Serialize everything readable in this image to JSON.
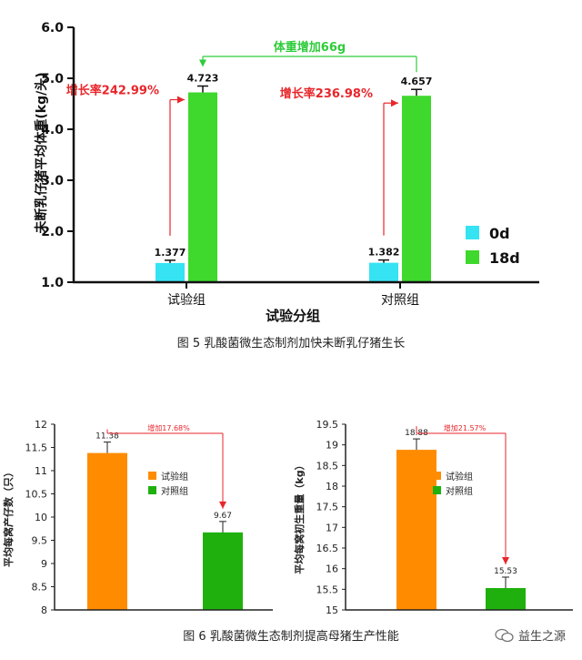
{
  "chart_data": [
    {
      "type": "bar",
      "ylabel": "未断乳仔猪平均体重(kg/头)",
      "xlabel": "试验分组",
      "categories": [
        "试验组",
        "对照组"
      ],
      "series": [
        {
          "name": "0d",
          "values": [
            1.377,
            1.382
          ],
          "labels": [
            "1.377",
            "1.382"
          ],
          "color": "#35e3f2"
        },
        {
          "name": "18d",
          "values": [
            4.723,
            4.657
          ],
          "labels": [
            "4.723",
            "4.657"
          ],
          "color": "#3fd82c"
        }
      ],
      "ylim": [
        1.0,
        6.0
      ],
      "yticks": [
        "1.0",
        "2.0",
        "3.0",
        "4.0",
        "5.0",
        "6.0"
      ],
      "legend_position": "right",
      "annotations": {
        "growth": [
          "增长率242.99%",
          "增长率236.98%"
        ],
        "diff": "体重增加66g"
      }
    },
    {
      "type": "bar",
      "ylabel": "平均每窝产仔数（只）",
      "categories": [
        "试验组",
        "对照组"
      ],
      "values": [
        11.38,
        9.67
      ],
      "labels": [
        "11.38",
        "9.67"
      ],
      "colors": [
        "#ff8c00",
        "#1fb00e"
      ],
      "ylim": [
        8,
        12
      ],
      "yticks": [
        "8",
        "8.5",
        "9",
        "9.5",
        "10",
        "10.5",
        "11",
        "11.5",
        "12"
      ],
      "legend_position": "center-right",
      "annotation": "增加17.68%"
    },
    {
      "type": "bar",
      "ylabel": "平均每窝初生重量（kg）",
      "categories": [
        "试验组",
        "对照组"
      ],
      "values": [
        18.88,
        15.53
      ],
      "labels": [
        "18.88",
        "15.53"
      ],
      "colors": [
        "#ff8c00",
        "#1fb00e"
      ],
      "ylim": [
        15,
        19.5
      ],
      "yticks": [
        "15",
        "15.5",
        "16",
        "16.5",
        "17",
        "17.5",
        "18",
        "18.5",
        "19",
        "19.5"
      ],
      "legend_position": "center-right",
      "annotation": "增加21.57%"
    }
  ],
  "captions": {
    "fig5": "图 5    乳酸菌微生态制剂加快未断乳仔猪生长",
    "fig6": "图 6    乳酸菌微生态制剂提高母猪生产性能"
  },
  "watermark": {
    "text": "益生之源",
    "icon": "wechat-icon"
  },
  "colors": {
    "red": "#e8262b",
    "green": "#2ecc3a"
  }
}
